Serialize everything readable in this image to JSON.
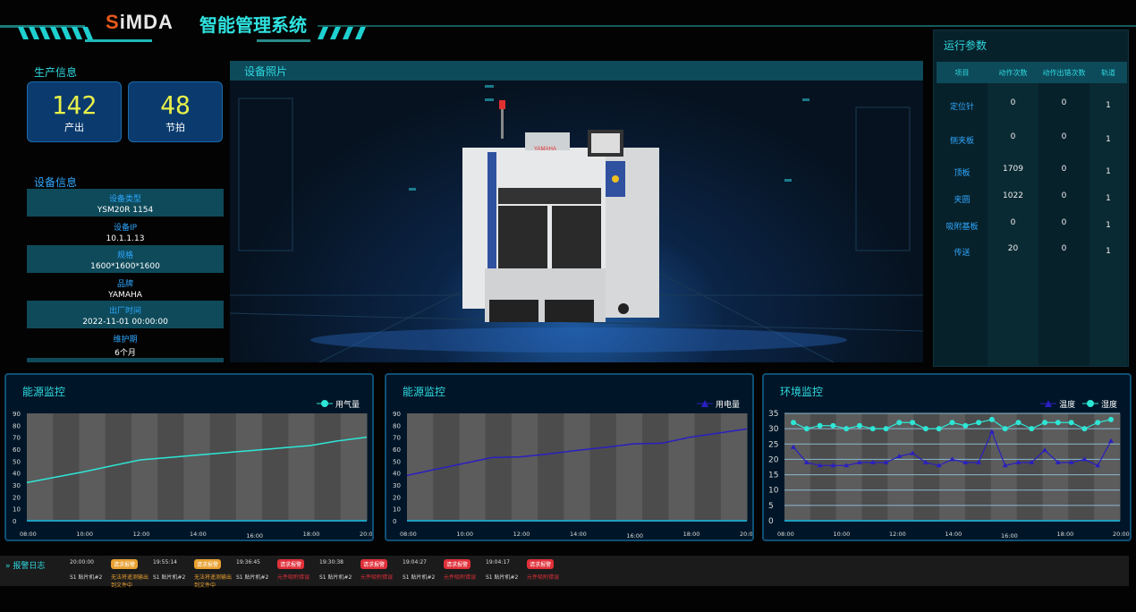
{
  "header": {
    "logo": "SiMDA",
    "title": "智能管理系统"
  },
  "production": {
    "title": "生产信息",
    "kpis": [
      {
        "value": "142",
        "label": "产出"
      },
      {
        "value": "48",
        "label": "节拍"
      }
    ]
  },
  "device": {
    "title": "设备信息",
    "fields": [
      {
        "key": "设备类型",
        "value": "YSM20R 1154"
      },
      {
        "key": "设备IP",
        "value": "10.1.1.13"
      },
      {
        "key": "规格",
        "value": "1600*1600*1600"
      },
      {
        "key": "品牌",
        "value": "YAMAHA"
      },
      {
        "key": "出厂时间",
        "value": "2022-11-01   00:00:00"
      },
      {
        "key": "维护期",
        "value": "6个月"
      }
    ]
  },
  "photo": {
    "title": "设备照片",
    "brand": "YAMAHA"
  },
  "params": {
    "title": "运行参数",
    "columns": [
      "项目",
      "动作次数",
      "动作出错次数",
      "轨道"
    ],
    "rows": [
      [
        "定位针",
        "0",
        "0",
        "1"
      ],
      [
        "侧夹板",
        "0",
        "0",
        "1"
      ],
      [
        "顶板",
        "1709",
        "0",
        "1"
      ],
      [
        "夹圆",
        "1022",
        "0",
        "1"
      ],
      [
        "吸附基板",
        "0",
        "0",
        "1"
      ],
      [
        "传送",
        "20",
        "0",
        "1"
      ]
    ]
  },
  "charts": [
    {
      "title": "能源监控",
      "chart_data": {
        "type": "line",
        "x": [
          "08:00",
          "09:00",
          "10:00",
          "11:00",
          "12:00",
          "13:00",
          "14:00",
          "15:00",
          "16:00",
          "17:00",
          "18:00",
          "19:00",
          "20:00"
        ],
        "xticks": [
          "08:00",
          "10:00",
          "12:00",
          "14:00",
          "16:00",
          "18:00",
          "20:00"
        ],
        "ylim": [
          0,
          90
        ],
        "yticks": [
          0,
          10,
          20,
          30,
          40,
          50,
          60,
          70,
          80,
          90
        ],
        "series": [
          {
            "name": "用气量",
            "color": "#2ee6d6",
            "marker": "circle",
            "values": [
              32,
              36.5,
              41,
              46,
              51,
              53,
              55,
              57,
              59,
              61,
              63,
              67,
              70
            ]
          }
        ]
      }
    },
    {
      "title": "能源监控",
      "chart_data": {
        "type": "line",
        "x": [
          "08:00",
          "09:00",
          "10:00",
          "11:00",
          "12:00",
          "13:00",
          "14:00",
          "15:00",
          "16:00",
          "17:00",
          "18:00",
          "19:00",
          "20:00"
        ],
        "xticks": [
          "08:00",
          "10:00",
          "12:00",
          "14:00",
          "16:00",
          "18:00",
          "20:00"
        ],
        "ylim": [
          0,
          90
        ],
        "yticks": [
          0,
          10,
          20,
          30,
          40,
          50,
          60,
          70,
          80,
          90
        ],
        "series": [
          {
            "name": "用电量",
            "color": "#2a1fc0",
            "marker": "triangle",
            "values": [
              38,
              43,
              48,
              53,
              53.5,
              56,
              59,
              61.5,
              64.5,
              65,
              70,
              73.5,
              77
            ]
          }
        ]
      }
    },
    {
      "title": "环境监控",
      "chart_data": {
        "type": "line",
        "x": [
          "08:30",
          "09:00",
          "09:30",
          "10:00",
          "10:30",
          "11:00",
          "11:30",
          "12:00",
          "12:30",
          "13:00",
          "13:30",
          "14:00",
          "14:30",
          "15:00",
          "15:30",
          "16:00",
          "16:30",
          "17:00",
          "17:30",
          "18:00",
          "18:30",
          "19:00",
          "19:30",
          "20:00",
          "20:30"
        ],
        "xticks": [
          "08:00",
          "10:00",
          "12:00",
          "14:00",
          "16:00",
          "18:00",
          "20:00"
        ],
        "ylim": [
          0,
          35
        ],
        "yticks": [
          0,
          5,
          10,
          15,
          20,
          25,
          30,
          35
        ],
        "series": [
          {
            "name": "温度",
            "color": "#2a1fc0",
            "marker": "triangle",
            "values": [
              24,
              19,
              18,
              18,
              18,
              19,
              19,
              19,
              21,
              22,
              19,
              18,
              20,
              19,
              19,
              29,
              18,
              19,
              19,
              23,
              19,
              19,
              20,
              18,
              26
            ]
          },
          {
            "name": "湿度",
            "color": "#2ee6d6",
            "marker": "circle",
            "values": [
              32,
              30,
              31,
              31,
              30,
              31,
              30,
              30,
              32,
              32,
              30,
              30,
              32,
              31,
              32,
              33,
              30,
              32,
              30,
              32,
              32,
              32,
              30,
              32,
              33
            ]
          }
        ]
      }
    }
  ],
  "alarms": {
    "title": "报警日志",
    "items": [
      {
        "time": "20:00:00",
        "badge": "请求报警",
        "source": "S1 贴片机#2",
        "message": "无法将遥测输出到文件中",
        "level": "#e8a030"
      },
      {
        "time": "19:55:14",
        "badge": "请求报警",
        "source": "S1 贴片机#2",
        "message": "无法将遥测输出到文件中",
        "level": "#e8a030"
      },
      {
        "time": "19:36:45",
        "badge": "请求报警",
        "source": "S1 贴片机#2",
        "message": "元件吸附错误",
        "level": "#e0303a"
      },
      {
        "time": "19:30:38",
        "badge": "请求报警",
        "source": "S1 贴片机#2",
        "message": "元件吸附错误",
        "level": "#e0303a"
      },
      {
        "time": "19:04:27",
        "badge": "请求报警",
        "source": "S1 贴片机#2",
        "message": "元件吸附错误",
        "level": "#e0303a"
      },
      {
        "time": "19:04:17",
        "badge": "请求报警",
        "source": "S1 贴片机#2",
        "message": "元件吸附错误",
        "level": "#e0303a"
      }
    ]
  }
}
